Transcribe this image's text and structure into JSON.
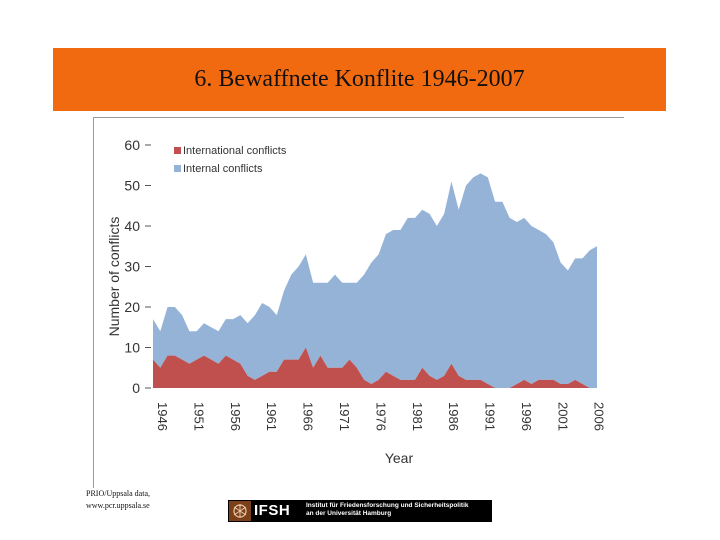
{
  "slide": {
    "title": "6. Bewaffnete Konflite 1946-2007",
    "source_line1": "PRIO/Uppsala data,",
    "source_line2": "www.pcr.uppsala.se"
  },
  "logo": {
    "name": "IFSH",
    "subtitle_line1": "Institut für Friedensforschung und Sicherheitspolitik",
    "subtitle_line2": "an der Universität Hamburg"
  },
  "colors": {
    "banner": "#f26a10",
    "international": "#c0504d",
    "internal": "#95b3d7"
  },
  "chart_data": {
    "type": "area",
    "xlabel": "Year",
    "ylabel": "Number of conflicts",
    "ylim": [
      0,
      60
    ],
    "yticks": [
      "0",
      "10",
      "20",
      "30",
      "40",
      "50",
      "60"
    ],
    "xticks": [
      "1946",
      "1951",
      "1956",
      "1961",
      "1966",
      "1971",
      "1976",
      "1981",
      "1986",
      "1991",
      "1996",
      "2001",
      "2006"
    ],
    "legend_position": "top-left",
    "stacked": true,
    "x": [
      1946,
      1947,
      1948,
      1949,
      1950,
      1951,
      1952,
      1953,
      1954,
      1955,
      1956,
      1957,
      1958,
      1959,
      1960,
      1961,
      1962,
      1963,
      1964,
      1965,
      1966,
      1967,
      1968,
      1969,
      1970,
      1971,
      1972,
      1973,
      1974,
      1975,
      1976,
      1977,
      1978,
      1979,
      1980,
      1981,
      1982,
      1983,
      1984,
      1985,
      1986,
      1987,
      1988,
      1989,
      1990,
      1991,
      1992,
      1993,
      1994,
      1995,
      1996,
      1997,
      1998,
      1999,
      2000,
      2001,
      2002,
      2003,
      2004,
      2005,
      2006,
      2007
    ],
    "series": [
      {
        "name": "International conflicts",
        "color": "#c0504d",
        "values": [
          7,
          5,
          8,
          8,
          7,
          6,
          7,
          8,
          7,
          6,
          8,
          7,
          6,
          3,
          2,
          3,
          4,
          4,
          7,
          7,
          7,
          10,
          5,
          8,
          5,
          5,
          5,
          7,
          5,
          2,
          1,
          2,
          4,
          3,
          2,
          2,
          2,
          5,
          3,
          2,
          3,
          6,
          3,
          2,
          2,
          2,
          1,
          0,
          0,
          0,
          1,
          2,
          1,
          2,
          2,
          2,
          1,
          1,
          2,
          1,
          0,
          0
        ]
      },
      {
        "name": "Internal conflicts",
        "color": "#95b3d7",
        "values": [
          10,
          9,
          12,
          12,
          11,
          8,
          7,
          8,
          8,
          8,
          9,
          10,
          12,
          13,
          16,
          18,
          16,
          14,
          17,
          21,
          23,
          23,
          21,
          18,
          21,
          23,
          21,
          19,
          21,
          26,
          30,
          31,
          34,
          36,
          37,
          40,
          40,
          39,
          40,
          38,
          40,
          45,
          41,
          48,
          50,
          51,
          51,
          46,
          46,
          42,
          40,
          40,
          39,
          37,
          36,
          34,
          30,
          28,
          30,
          31,
          34,
          35
        ]
      }
    ]
  }
}
